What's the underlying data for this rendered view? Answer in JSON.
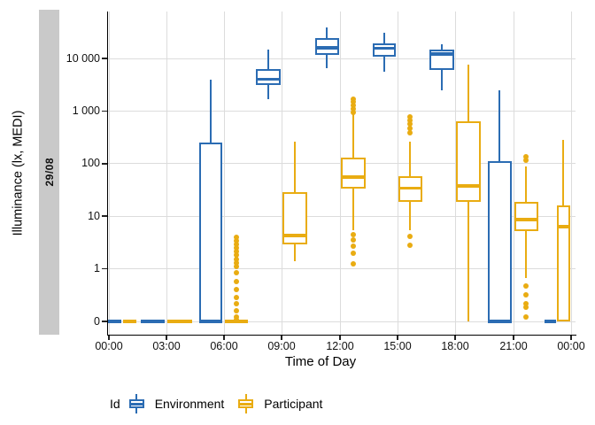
{
  "chart_data": {
    "type": "boxplot",
    "title": "",
    "xlabel": "Time of Day",
    "ylabel": "Illuminance (lx, MEDI)",
    "facet_label": "29/08",
    "y_scale": "log10 above 1 with linear zero segment",
    "grid": true,
    "x_tick_labels": [
      "00:00",
      "03:00",
      "06:00",
      "09:00",
      "12:00",
      "15:00",
      "18:00",
      "21:00",
      "00:00"
    ],
    "y_ticks": [
      {
        "value": 0,
        "label": "0"
      },
      {
        "value": 1,
        "label": "1"
      },
      {
        "value": 10,
        "label": "10"
      },
      {
        "value": 100,
        "label": "100"
      },
      {
        "value": 1000,
        "label": "1 000"
      },
      {
        "value": 10000,
        "label": "10 000"
      }
    ],
    "legend": {
      "title": "Id",
      "position": "bottom",
      "entries": [
        {
          "label": "Environment",
          "color": "#2b6cb3"
        },
        {
          "label": "Participant",
          "color": "#e9ac12"
        }
      ]
    },
    "boxes": [
      {
        "time": "00:00",
        "series": "Environment",
        "whisker_low": 0,
        "q1": 0,
        "median": 0,
        "q3": 0,
        "whisker_high": 0,
        "outliers_low": [],
        "outliers_high": [],
        "cx": 129,
        "w": 16
      },
      {
        "time": "00:00",
        "series": "Participant",
        "whisker_low": 0,
        "q1": 0,
        "median": 0,
        "q3": 0,
        "whisker_high": 0,
        "outliers_low": [],
        "outliers_high": [],
        "cx": 146,
        "w": 15
      },
      {
        "time": "03:00",
        "series": "Environment",
        "whisker_low": 0,
        "q1": 0,
        "median": 0,
        "q3": 0,
        "whisker_high": 0,
        "outliers_low": [],
        "outliers_high": [],
        "cx": 172,
        "w": 27
      },
      {
        "time": "03:00",
        "series": "Participant",
        "whisker_low": 0,
        "q1": 0,
        "median": 0,
        "q3": 0,
        "whisker_high": 0,
        "outliers_low": [],
        "outliers_high": [],
        "cx": 203,
        "w": 28
      },
      {
        "time": "06:00",
        "series": "Environment",
        "whisker_low": 0,
        "q1": 0,
        "median": 0,
        "q3": 250,
        "whisker_high": 3900,
        "outliers_low": [],
        "outliers_high": [],
        "cx": 238,
        "w": 26
      },
      {
        "time": "06:00",
        "series": "Participant",
        "whisker_low": 0,
        "q1": 0,
        "median": 0,
        "q3": 0,
        "whisker_high": 0,
        "outliers_low": [
          4,
          3.4,
          2.9,
          2.5,
          2.1,
          1.8,
          1.5,
          1.3,
          1.1,
          0.92,
          0.75,
          0.6,
          0.46,
          0.33,
          0.2,
          0.09,
          0.03
        ],
        "outliers_high": [],
        "cx": 267,
        "w": 26
      },
      {
        "time": "09:00",
        "series": "Environment",
        "whisker_low": 1650,
        "q1": 3100,
        "median": 4050,
        "q3": 6270,
        "whisker_high": 14700,
        "outliers_low": [],
        "outliers_high": [],
        "cx": 303,
        "w": 28
      },
      {
        "time": "09:00",
        "series": "Participant",
        "whisker_low": 1.4,
        "q1": 2.9,
        "median": 4.3,
        "q3": 29,
        "whisker_high": 263,
        "outliers_low": [],
        "outliers_high": [],
        "cx": 333,
        "w": 28
      },
      {
        "time": "12:00",
        "series": "Environment",
        "whisker_low": 6500,
        "q1": 11700,
        "median": 16000,
        "q3": 24400,
        "whisker_high": 39000,
        "outliers_low": [],
        "outliers_high": [],
        "cx": 369,
        "w": 27
      },
      {
        "time": "12:00",
        "series": "Participant",
        "whisker_low": 5.4,
        "q1": 34,
        "median": 56,
        "q3": 130,
        "whisker_high": 880,
        "outliers_low": [
          4.4,
          3.5,
          2.7,
          2.0,
          1.25
        ],
        "outliers_high": [
          1700,
          1480,
          1280,
          1100,
          950
        ],
        "cx": 399,
        "w": 28
      },
      {
        "time": "15:00",
        "series": "Environment",
        "whisker_low": 5560,
        "q1": 10800,
        "median": 15600,
        "q3": 19300,
        "whisker_high": 31000,
        "outliers_low": [],
        "outliers_high": [],
        "cx": 434,
        "w": 26
      },
      {
        "time": "15:00",
        "series": "Participant",
        "whisker_low": 5.4,
        "q1": 19,
        "median": 34,
        "q3": 57,
        "whisker_high": 260,
        "outliers_low": [
          4.1,
          2.8
        ],
        "outliers_high": [
          770,
          660,
          560,
          470,
          380
        ],
        "cx": 463,
        "w": 27
      },
      {
        "time": "18:00",
        "series": "Environment",
        "whisker_low": 2470,
        "q1": 6000,
        "median": 12100,
        "q3": 14700,
        "whisker_high": 18600,
        "outliers_low": [],
        "outliers_high": [],
        "cx": 499,
        "w": 28
      },
      {
        "time": "18:00",
        "series": "Participant",
        "whisker_low": 0,
        "q1": 19,
        "median": 38,
        "q3": 650,
        "whisker_high": 7600,
        "outliers_low": [],
        "outliers_high": [],
        "cx": 529,
        "w": 28
      },
      {
        "time": "21:00",
        "series": "Environment",
        "whisker_low": 0,
        "q1": 0,
        "median": 0,
        "q3": 110,
        "whisker_high": 2450,
        "outliers_low": [],
        "outliers_high": [],
        "cx": 564,
        "w": 27
      },
      {
        "time": "21:00",
        "series": "Participant",
        "whisker_low": 0.82,
        "q1": 5.2,
        "median": 8.6,
        "q3": 18.6,
        "whisker_high": 90,
        "outliers_low": [
          0.67,
          0.5,
          0.34,
          0.27,
          0.09
        ],
        "outliers_high": [
          135,
          118
        ],
        "cx": 594,
        "w": 27
      },
      {
        "time": "00:00",
        "series": "Environment",
        "whisker_low": 0,
        "q1": 0,
        "median": 0,
        "q3": 0,
        "whisker_high": 0,
        "outliers_low": [],
        "outliers_high": [],
        "cx": 621,
        "w": 13
      },
      {
        "time": "00:00",
        "series": "Participant",
        "whisker_low": 0,
        "q1": 0,
        "median": 6.3,
        "q3": 16,
        "whisker_high": 285,
        "outliers_low": [],
        "outliers_high": [],
        "cx": 636,
        "w": 15
      }
    ]
  }
}
